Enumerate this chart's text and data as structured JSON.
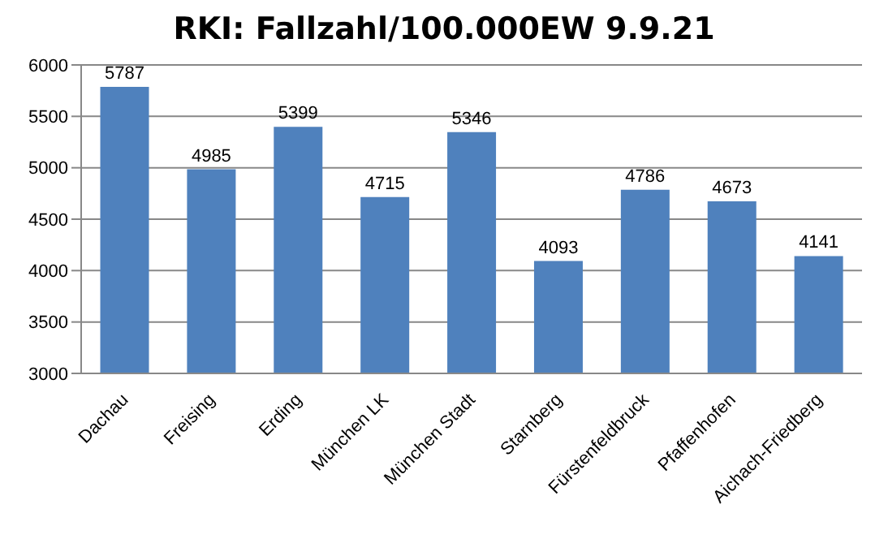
{
  "chart_data": {
    "type": "bar",
    "title": "RKI: Fallzahl/100.000EW 9.9.21",
    "categories": [
      "Dachau",
      "Freising",
      "Erding",
      "München LK",
      "München Stadt",
      "Starnberg",
      "Fürstenfeldbruck",
      "Pfaffenhofen",
      "Aichach-Friedberg"
    ],
    "values": [
      5787,
      4985,
      5399,
      4715,
      5346,
      4093,
      4786,
      4673,
      4141
    ],
    "color": "#4f81bd",
    "ylim": [
      3000,
      6000
    ],
    "yticks": [
      3000,
      3500,
      4000,
      4500,
      5000,
      5500,
      6000
    ],
    "grid": "y",
    "data_labels": true,
    "legend": false
  }
}
